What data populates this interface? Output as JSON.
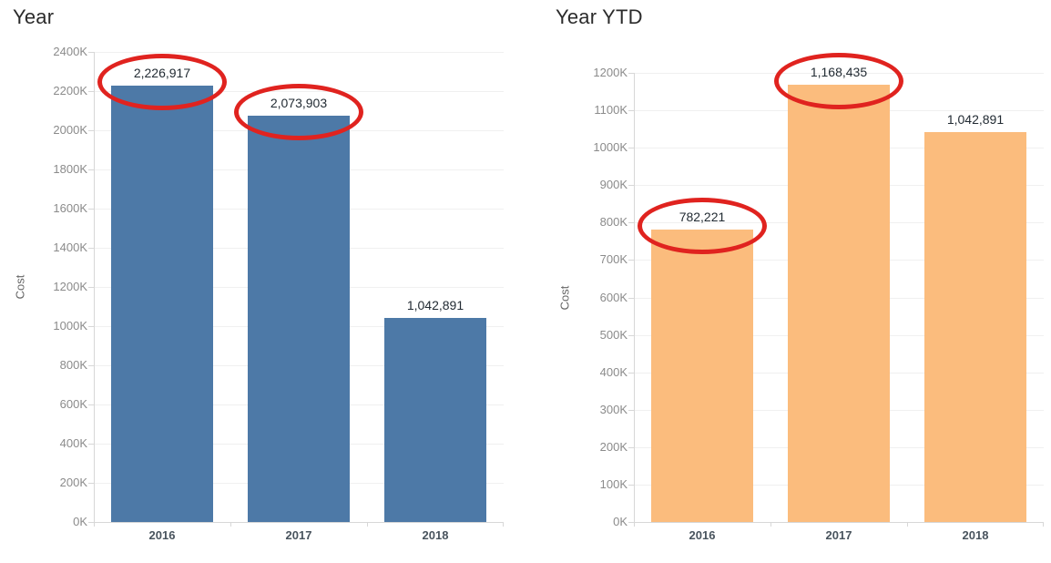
{
  "page": {
    "background_color": "#ffffff"
  },
  "chart_data": [
    {
      "type": "bar",
      "title": "Year",
      "ylabel": "Cost",
      "xlabel": "",
      "categories": [
        "2016",
        "2017",
        "2018"
      ],
      "values": [
        2226917,
        2073903,
        1042891
      ],
      "bar_labels": [
        "2,226,917",
        "2,073,903",
        "1,042,891"
      ],
      "circled": [
        true,
        true,
        false
      ],
      "bar_color": "#4d79a7",
      "ylim": [
        0,
        2400000
      ],
      "ytick_step": 200000,
      "yticks": [
        "0K",
        "200K",
        "400K",
        "600K",
        "800K",
        "1000K",
        "1200K",
        "1400K",
        "1600K",
        "1800K",
        "2000K",
        "2200K",
        "2400K"
      ],
      "grid": true,
      "legend": "none",
      "annotation": "red-ellipse",
      "annotation_color": "#e0231f"
    },
    {
      "type": "bar",
      "title": "Year YTD",
      "ylabel": "Cost",
      "xlabel": "",
      "categories": [
        "2016",
        "2017",
        "2018"
      ],
      "values": [
        782221,
        1168435,
        1042891
      ],
      "bar_labels": [
        "782,221",
        "1,168,435",
        "1,042,891"
      ],
      "circled": [
        true,
        true,
        false
      ],
      "bar_color": "#fbbc7d",
      "ylim": [
        0,
        1200000
      ],
      "ytick_step": 100000,
      "yticks": [
        "0K",
        "100K",
        "200K",
        "300K",
        "400K",
        "500K",
        "600K",
        "700K",
        "800K",
        "900K",
        "1000K",
        "1100K",
        "1200K"
      ],
      "grid": true,
      "legend": "none",
      "annotation": "red-ellipse",
      "annotation_color": "#e0231f"
    }
  ]
}
